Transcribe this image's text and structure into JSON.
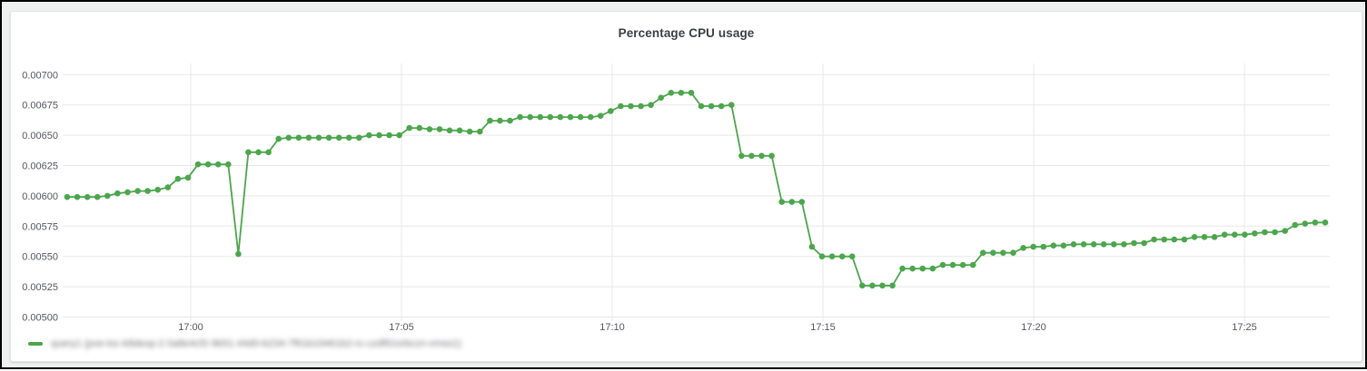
{
  "panel": {
    "title": "Percentage CPU usage"
  },
  "legend": {
    "marker_color": "#4CA64C",
    "blurred": true,
    "series_label_redacted": "query1 (pve-loc-k8dexp-2 0a8e4cf2-9b51-44d0-b234-7f61b19461b2-rc-czdf91srbczn-vmss1)"
  },
  "colors": {
    "line": "#4CA64C",
    "grid": "#e8e8e8",
    "tick_text": "#54575d",
    "title_text": "#3b3e44",
    "panel_bg": "#ffffff",
    "gutter_bg": "#eff1f1"
  },
  "chart_data": {
    "type": "line",
    "title": "Percentage CPU usage",
    "xlabel": "",
    "ylabel": "",
    "x_tick_labels": [
      "17:00",
      "17:05",
      "17:10",
      "17:15",
      "17:20",
      "17:25"
    ],
    "y_tick_labels": [
      "0.00500",
      "0.00525",
      "0.00550",
      "0.00575",
      "0.00600",
      "0.00625",
      "0.00650",
      "0.00675",
      "0.00700"
    ],
    "ylim": [
      0.005,
      0.007
    ],
    "y_tick_step": 0.00025,
    "grid": true,
    "marker": "circle",
    "legend_position": "bottom-left",
    "series": [
      {
        "name": "query1 (redacted)",
        "color": "#4CA64C",
        "values": [
          0.00599,
          0.00599,
          0.00599,
          0.00599,
          0.006,
          0.00602,
          0.00603,
          0.00604,
          0.00604,
          0.00605,
          0.00607,
          0.00614,
          0.00615,
          0.00626,
          0.00626,
          0.00626,
          0.00626,
          0.00552,
          0.00636,
          0.00636,
          0.00636,
          0.00647,
          0.00648,
          0.00648,
          0.00648,
          0.00648,
          0.00648,
          0.00648,
          0.00648,
          0.00648,
          0.0065,
          0.0065,
          0.0065,
          0.0065,
          0.00656,
          0.00656,
          0.00655,
          0.00655,
          0.00654,
          0.00654,
          0.00653,
          0.00653,
          0.00662,
          0.00662,
          0.00662,
          0.00665,
          0.00665,
          0.00665,
          0.00665,
          0.00665,
          0.00665,
          0.00665,
          0.00665,
          0.00666,
          0.0067,
          0.00674,
          0.00674,
          0.00674,
          0.00675,
          0.00681,
          0.00685,
          0.00685,
          0.00685,
          0.00674,
          0.00674,
          0.00674,
          0.00675,
          0.00633,
          0.00633,
          0.00633,
          0.00633,
          0.00595,
          0.00595,
          0.00595,
          0.00558,
          0.0055,
          0.0055,
          0.0055,
          0.0055,
          0.00526,
          0.00526,
          0.00526,
          0.00526,
          0.0054,
          0.0054,
          0.0054,
          0.0054,
          0.00543,
          0.00543,
          0.00543,
          0.00543,
          0.00553,
          0.00553,
          0.00553,
          0.00553,
          0.00557,
          0.00558,
          0.00558,
          0.00559,
          0.00559,
          0.0056,
          0.0056,
          0.0056,
          0.0056,
          0.0056,
          0.0056,
          0.00561,
          0.00561,
          0.00564,
          0.00564,
          0.00564,
          0.00564,
          0.00566,
          0.00566,
          0.00566,
          0.00568,
          0.00568,
          0.00568,
          0.00569,
          0.0057,
          0.0057,
          0.00571,
          0.00576,
          0.00577,
          0.00578,
          0.00578
        ]
      }
    ]
  }
}
